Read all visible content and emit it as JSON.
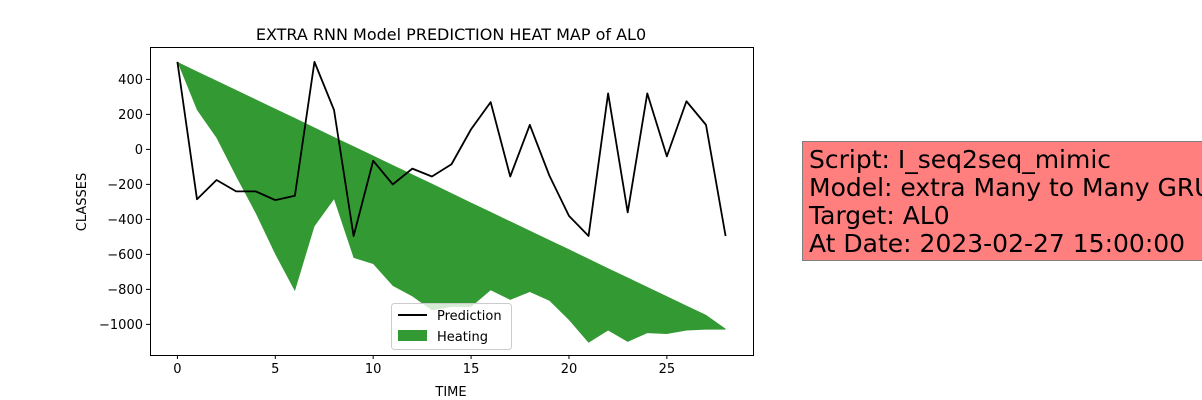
{
  "chart_data": {
    "type": "area",
    "title": "EXTRA RNN Model PREDICTION HEAT MAP of AL0",
    "xlabel": "TIME",
    "ylabel": "CLASSES",
    "xlim": [
      -1.4,
      29.4
    ],
    "ylim": [
      -1175,
      585
    ],
    "xticks": [
      0,
      5,
      10,
      15,
      20,
      25
    ],
    "yticks": [
      400,
      200,
      0,
      -200,
      -400,
      -600,
      -800,
      -1000
    ],
    "ytick_labels": [
      "400",
      "200",
      "0",
      "−200",
      "−400",
      "−600",
      "−800",
      "−1000"
    ],
    "legend_position": "lower center",
    "series": [
      {
        "name": "Prediction",
        "kind": "line",
        "color": "#000000",
        "x": [
          0,
          1,
          2,
          3,
          4,
          5,
          6,
          7,
          8,
          9,
          10,
          11,
          12,
          13,
          14,
          15,
          16,
          17,
          18,
          19,
          20,
          21,
          22,
          23,
          24,
          25,
          26,
          27,
          28
        ],
        "y": [
          500,
          -285,
          -175,
          -240,
          -240,
          -290,
          -265,
          500,
          225,
          -495,
          -65,
          -200,
          -110,
          -155,
          -85,
          115,
          270,
          -155,
          140,
          -150,
          -380,
          -495,
          320,
          -360,
          320,
          -40,
          275,
          140,
          -495
        ]
      },
      {
        "name": "Heating",
        "kind": "fill_between",
        "color": "#339933",
        "x": [
          0,
          1,
          2,
          3,
          4,
          5,
          6,
          7,
          8,
          9,
          10,
          11,
          12,
          13,
          14,
          15,
          16,
          17,
          18,
          19,
          20,
          21,
          22,
          23,
          24,
          25,
          26,
          27,
          28
        ],
        "upper": [
          500,
          446,
          393,
          339,
          286,
          232,
          179,
          125,
          71,
          18,
          -36,
          -89,
          -143,
          -196,
          -250,
          -304,
          -357,
          -411,
          -464,
          -518,
          -571,
          -625,
          -679,
          -732,
          -786,
          -839,
          -893,
          -946,
          -1025
        ],
        "lower": [
          500,
          225,
          65,
          -155,
          -365,
          -600,
          -810,
          -440,
          -285,
          -620,
          -655,
          -780,
          -840,
          -920,
          -900,
          -900,
          -805,
          -860,
          -815,
          -865,
          -975,
          -1105,
          -1035,
          -1100,
          -1050,
          -1055,
          -1035,
          -1030,
          -1030
        ]
      }
    ]
  },
  "info_box": {
    "line1": "Script: I_seq2seq_mimic",
    "line2": "Model: extra Many to Many GRU",
    "line3": "Target: AL0",
    "line4": "At Date: 2023-02-27 15:00:00"
  }
}
